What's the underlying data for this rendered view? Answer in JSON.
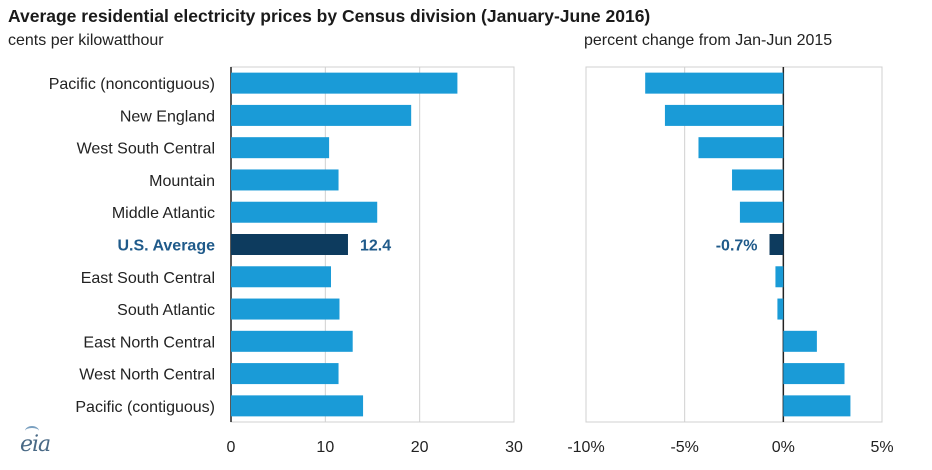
{
  "title": "Average residential electricity prices by Census division (January-June 2016)",
  "left_subtitle": "cents per kilowatthour",
  "right_subtitle": "percent change from Jan-Jun 2015",
  "logo_text": "eia",
  "colors": {
    "bar": "#1a9bd7",
    "highlight": "#0d3b5e",
    "highlight_text": "#1f5a8a",
    "grid": "#d0d0d0",
    "axis": "#222222"
  },
  "chart_data": [
    {
      "type": "bar",
      "orientation": "horizontal",
      "categories": [
        "Pacific (noncontiguous)",
        "New England",
        "West South Central",
        "Mountain",
        "Middle Atlantic",
        "U.S. Average",
        "East South Central",
        "South Atlantic",
        "East North Central",
        "West North Central",
        "Pacific (contiguous)"
      ],
      "values": [
        24.0,
        19.1,
        10.4,
        11.4,
        15.5,
        12.4,
        10.6,
        11.5,
        12.9,
        11.4,
        14.0
      ],
      "highlight": "U.S. Average",
      "data_labels": {
        "U.S. Average": "12.4"
      },
      "xlim": [
        0,
        30
      ],
      "xticks": [
        "0",
        "10",
        "20",
        "30"
      ],
      "xtick_values": [
        0,
        10,
        20,
        30
      ],
      "unit": "cents per kilowatthour"
    },
    {
      "type": "bar",
      "orientation": "horizontal",
      "categories": [
        "Pacific (noncontiguous)",
        "New England",
        "West South Central",
        "Mountain",
        "Middle Atlantic",
        "U.S. Average",
        "East South Central",
        "South Atlantic",
        "East North Central",
        "West North Central",
        "Pacific (contiguous)"
      ],
      "values": [
        -7.0,
        -6.0,
        -4.3,
        -2.6,
        -2.2,
        -0.7,
        -0.4,
        -0.3,
        1.7,
        3.1,
        3.4
      ],
      "highlight": "U.S. Average",
      "data_labels": {
        "U.S. Average": "-0.7%"
      },
      "xlim": [
        -10,
        5
      ],
      "xticks": [
        "-10%",
        "-5%",
        "0%",
        "5%"
      ],
      "xtick_values": [
        -10,
        -5,
        0,
        5
      ],
      "unit": "percent change from Jan-Jun 2015"
    }
  ]
}
